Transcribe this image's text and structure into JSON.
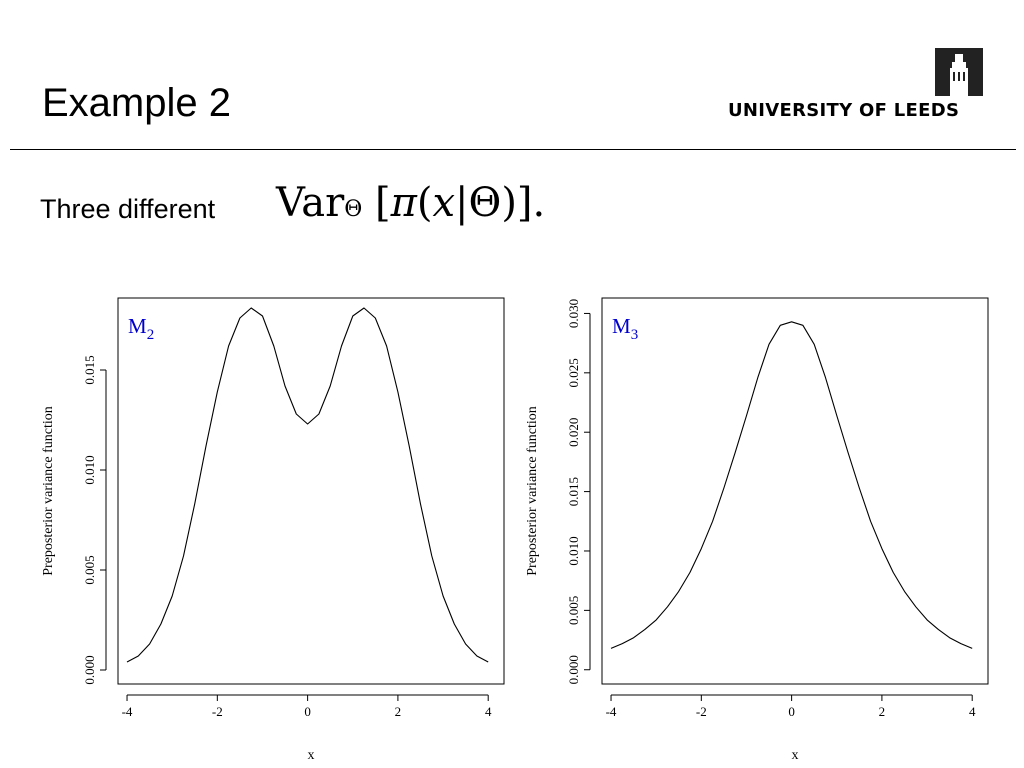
{
  "slide": {
    "title": "Example 2",
    "subtitle_prefix": "Three different",
    "formula": {
      "operator": "Var",
      "subscript": "Θ",
      "open": "[",
      "pi": "π",
      "paren_open": "(",
      "x": "x",
      "bar": "|",
      "theta": "Θ",
      "paren_close": ")",
      "close": "]",
      "period": "."
    }
  },
  "logo": {
    "text": "UNIVERSITY OF LEEDS",
    "icon": "university-tower-icon"
  },
  "colors": {
    "annotation": "#0000cc",
    "line": "#000000",
    "rule": "#000000"
  },
  "chart_data": [
    {
      "type": "line",
      "annotation": {
        "main": "M",
        "sub": "2"
      },
      "xlabel": "x",
      "ylabel": "Preposterior variance function",
      "xlim": [
        -4.2,
        4.35
      ],
      "ylim": [
        -0.0007,
        0.0186
      ],
      "xticks": [
        -4,
        -2,
        0,
        2,
        4
      ],
      "xtick_labels": [
        "-4",
        "-2",
        "0",
        "2",
        "4"
      ],
      "yticks": [
        0,
        0.005,
        0.01,
        0.015
      ],
      "ytick_labels": [
        "0.000",
        "0.005",
        "0.010",
        "0.015"
      ],
      "grid": false,
      "x": [
        -4.0,
        -3.75,
        -3.5,
        -3.25,
        -3.0,
        -2.75,
        -2.5,
        -2.25,
        -2.0,
        -1.75,
        -1.5,
        -1.25,
        -1.0,
        -0.75,
        -0.5,
        -0.25,
        0.0,
        0.25,
        0.5,
        0.75,
        1.0,
        1.25,
        1.5,
        1.75,
        2.0,
        2.25,
        2.5,
        2.75,
        3.0,
        3.25,
        3.5,
        3.75,
        4.0
      ],
      "y": [
        0.0004,
        0.0007,
        0.0013,
        0.0023,
        0.0037,
        0.0057,
        0.0083,
        0.0112,
        0.0139,
        0.0162,
        0.0176,
        0.0181,
        0.0177,
        0.0162,
        0.0142,
        0.0128,
        0.0123,
        0.0128,
        0.0142,
        0.0162,
        0.0177,
        0.0181,
        0.0176,
        0.0162,
        0.0139,
        0.0112,
        0.0083,
        0.0057,
        0.0037,
        0.0023,
        0.0013,
        0.0007,
        0.0004
      ]
    },
    {
      "type": "line",
      "annotation": {
        "main": "M",
        "sub": "3"
      },
      "xlabel": "x",
      "ylabel": "Preposterior variance function",
      "xlim": [
        -4.2,
        4.35
      ],
      "ylim": [
        -0.0012,
        0.0313
      ],
      "xticks": [
        -4,
        -2,
        0,
        2,
        4
      ],
      "xtick_labels": [
        "-4",
        "-2",
        "0",
        "2",
        "4"
      ],
      "yticks": [
        0,
        0.005,
        0.01,
        0.015,
        0.02,
        0.025,
        0.03
      ],
      "ytick_labels": [
        "0.000",
        "0.005",
        "0.010",
        "0.015",
        "0.020",
        "0.025",
        "0.030"
      ],
      "grid": false,
      "x": [
        -4.0,
        -3.75,
        -3.5,
        -3.25,
        -3.0,
        -2.75,
        -2.5,
        -2.25,
        -2.0,
        -1.75,
        -1.5,
        -1.25,
        -1.0,
        -0.75,
        -0.5,
        -0.25,
        0.0,
        0.25,
        0.5,
        0.75,
        1.0,
        1.25,
        1.5,
        1.75,
        2.0,
        2.25,
        2.5,
        2.75,
        3.0,
        3.25,
        3.5,
        3.75,
        4.0
      ],
      "y": [
        0.0018,
        0.0022,
        0.0027,
        0.0034,
        0.0042,
        0.0053,
        0.0066,
        0.0082,
        0.0102,
        0.0125,
        0.0153,
        0.0183,
        0.0214,
        0.0246,
        0.0274,
        0.029,
        0.0293,
        0.029,
        0.0274,
        0.0246,
        0.0214,
        0.0183,
        0.0153,
        0.0125,
        0.0102,
        0.0082,
        0.0066,
        0.0053,
        0.0042,
        0.0034,
        0.0027,
        0.0022,
        0.0018
      ]
    }
  ]
}
